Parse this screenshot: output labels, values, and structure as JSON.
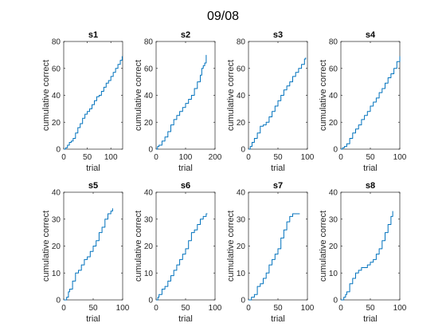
{
  "figure_title": "09/08",
  "chart_data": [
    {
      "type": "line",
      "title": "s1",
      "xlabel": "trial",
      "ylabel": "cumulative correct",
      "xlim": [
        0,
        125
      ],
      "ylim": [
        0,
        80
      ],
      "xticks": [
        0,
        50,
        100
      ],
      "yticks": [
        0,
        20,
        40,
        60,
        80
      ],
      "color": "#0072bd",
      "x": [
        0,
        4,
        8,
        12,
        16,
        20,
        25,
        30,
        35,
        40,
        45,
        50,
        55,
        60,
        65,
        70,
        75,
        80,
        85,
        90,
        95,
        100,
        105,
        110,
        115,
        120,
        124
      ],
      "y": [
        0,
        1,
        3,
        5,
        6,
        8,
        12,
        16,
        19,
        23,
        26,
        28,
        30,
        33,
        36,
        39,
        40,
        43,
        46,
        49,
        51,
        54,
        57,
        60,
        63,
        66,
        69
      ]
    },
    {
      "type": "line",
      "title": "s2",
      "xlabel": "trial",
      "ylabel": "cumulative correct",
      "xlim": [
        0,
        200
      ],
      "ylim": [
        0,
        80
      ],
      "xticks": [
        0,
        100,
        200
      ],
      "yticks": [
        0,
        20,
        40,
        60,
        80
      ],
      "color": "#0072bd",
      "x": [
        0,
        5,
        10,
        20,
        30,
        40,
        50,
        60,
        70,
        80,
        90,
        100,
        110,
        120,
        130,
        140,
        150,
        155,
        160,
        165,
        170
      ],
      "y": [
        0,
        2,
        3,
        6,
        9,
        13,
        18,
        22,
        25,
        28,
        31,
        34,
        37,
        40,
        45,
        50,
        55,
        60,
        62,
        64,
        70
      ]
    },
    {
      "type": "line",
      "title": "s3",
      "xlabel": "trial",
      "ylabel": "cumulative correct",
      "xlim": [
        0,
        100
      ],
      "ylim": [
        0,
        80
      ],
      "xticks": [
        0,
        50,
        100
      ],
      "yticks": [
        0,
        20,
        40,
        60,
        80
      ],
      "color": "#0072bd",
      "x": [
        0,
        3,
        6,
        10,
        15,
        20,
        25,
        30,
        35,
        40,
        45,
        50,
        55,
        60,
        65,
        70,
        75,
        80,
        85,
        90,
        95,
        97
      ],
      "y": [
        0,
        2,
        5,
        8,
        12,
        17,
        18,
        20,
        24,
        28,
        32,
        36,
        40,
        44,
        47,
        50,
        54,
        57,
        60,
        63,
        67,
        68
      ]
    },
    {
      "type": "line",
      "title": "s4",
      "xlabel": "trial",
      "ylabel": "cumulative correct",
      "xlim": [
        0,
        100
      ],
      "ylim": [
        0,
        80
      ],
      "xticks": [
        0,
        50,
        100
      ],
      "yticks": [
        0,
        20,
        40,
        60,
        80
      ],
      "color": "#0072bd",
      "x": [
        0,
        3,
        6,
        10,
        15,
        20,
        25,
        30,
        35,
        40,
        45,
        50,
        55,
        60,
        65,
        70,
        75,
        80,
        85,
        90,
        95,
        100
      ],
      "y": [
        0,
        1,
        2,
        4,
        8,
        12,
        15,
        18,
        22,
        25,
        28,
        32,
        35,
        38,
        42,
        45,
        49,
        53,
        56,
        60,
        65,
        69
      ]
    },
    {
      "type": "line",
      "title": "s5",
      "xlabel": "trial",
      "ylabel": "cumulative correct",
      "xlim": [
        0,
        100
      ],
      "ylim": [
        0,
        40
      ],
      "xticks": [
        0,
        50,
        100
      ],
      "yticks": [
        0,
        10,
        20,
        30,
        40
      ],
      "color": "#0072bd",
      "x": [
        0,
        3,
        5,
        8,
        10,
        15,
        20,
        25,
        30,
        35,
        40,
        45,
        50,
        55,
        60,
        65,
        70,
        75,
        80,
        83
      ],
      "y": [
        0,
        0,
        1,
        3,
        4,
        7,
        10,
        11,
        13,
        15,
        16,
        18,
        20,
        22,
        25,
        27,
        30,
        32,
        33,
        34
      ]
    },
    {
      "type": "line",
      "title": "s6",
      "xlabel": "trial",
      "ylabel": "cumulative correct",
      "xlim": [
        0,
        100
      ],
      "ylim": [
        0,
        40
      ],
      "xticks": [
        0,
        50,
        100
      ],
      "yticks": [
        0,
        10,
        20,
        30,
        40
      ],
      "color": "#0072bd",
      "x": [
        0,
        3,
        5,
        10,
        15,
        20,
        25,
        30,
        35,
        40,
        45,
        50,
        55,
        60,
        65,
        70,
        75,
        80,
        85,
        87
      ],
      "y": [
        0,
        1,
        2,
        4,
        5,
        7,
        9,
        11,
        13,
        15,
        17,
        19,
        22,
        25,
        26,
        28,
        30,
        31,
        32,
        32
      ]
    },
    {
      "type": "line",
      "title": "s7",
      "xlabel": "trial",
      "ylabel": "cumulative correct",
      "xlim": [
        0,
        100
      ],
      "ylim": [
        0,
        40
      ],
      "xticks": [
        0,
        50,
        100
      ],
      "yticks": [
        0,
        10,
        20,
        30,
        40
      ],
      "color": "#0072bd",
      "x": [
        0,
        5,
        10,
        15,
        20,
        25,
        30,
        35,
        40,
        45,
        50,
        55,
        60,
        65,
        70,
        75,
        80,
        85,
        87
      ],
      "y": [
        0,
        1,
        2,
        5,
        6,
        8,
        10,
        13,
        15,
        17,
        19,
        23,
        26,
        29,
        31,
        32,
        32,
        32,
        32
      ]
    },
    {
      "type": "line",
      "title": "s8",
      "xlabel": "trial",
      "ylabel": "cumulative correct",
      "xlim": [
        0,
        100
      ],
      "ylim": [
        0,
        40
      ],
      "xticks": [
        0,
        50,
        100
      ],
      "yticks": [
        0,
        10,
        20,
        30,
        40
      ],
      "color": "#0072bd",
      "x": [
        0,
        3,
        5,
        8,
        10,
        15,
        20,
        25,
        30,
        35,
        40,
        45,
        50,
        55,
        60,
        65,
        70,
        75,
        80,
        85,
        88
      ],
      "y": [
        0,
        0,
        1,
        2,
        3,
        6,
        8,
        10,
        11,
        12,
        12,
        13,
        14,
        15,
        17,
        19,
        22,
        25,
        28,
        31,
        33
      ]
    }
  ]
}
